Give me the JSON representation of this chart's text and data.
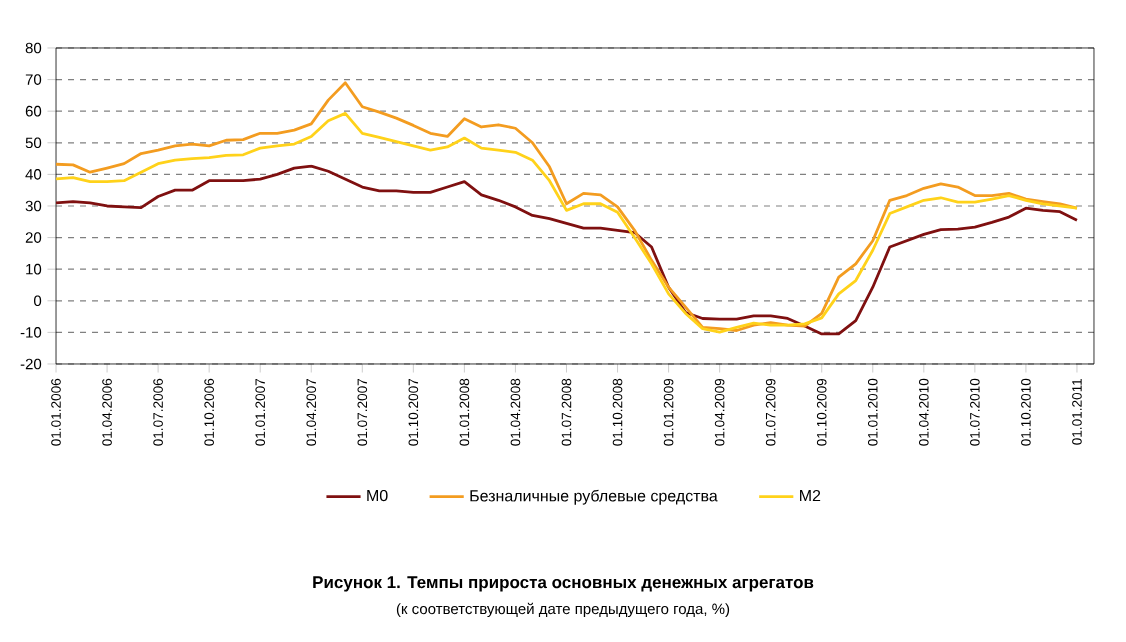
{
  "chart_data": {
    "type": "line",
    "title": "Рисунок 1. Темпы прироста основных денежных агрегатов",
    "subtitle": "(к соответствующей дате предыдущего года, %)",
    "x": [
      "2006-01",
      "2006-02",
      "2006-03",
      "2006-04",
      "2006-05",
      "2006-06",
      "2006-07",
      "2006-08",
      "2006-09",
      "2006-10",
      "2006-11",
      "2006-12",
      "2007-01",
      "2007-02",
      "2007-03",
      "2007-04",
      "2007-05",
      "2007-06",
      "2007-07",
      "2007-08",
      "2007-09",
      "2007-10",
      "2007-11",
      "2007-12",
      "2008-01",
      "2008-02",
      "2008-03",
      "2008-04",
      "2008-05",
      "2008-06",
      "2008-07",
      "2008-08",
      "2008-09",
      "2008-10",
      "2008-11",
      "2008-12",
      "2009-01",
      "2009-02",
      "2009-03",
      "2009-04",
      "2009-05",
      "2009-06",
      "2009-07",
      "2009-08",
      "2009-09",
      "2009-10",
      "2009-11",
      "2009-12",
      "2010-01",
      "2010-02",
      "2010-03",
      "2010-04",
      "2010-05",
      "2010-06",
      "2010-07",
      "2010-08",
      "2010-09",
      "2010-10",
      "2010-11",
      "2010-12",
      "2011-01"
    ],
    "series": [
      {
        "name": "М0",
        "color": "#7f1010",
        "values": [
          31,
          31.4,
          31,
          30,
          29.7,
          29.5,
          33,
          35,
          35,
          38,
          38,
          38,
          38.5,
          40,
          42,
          42.6,
          41,
          38.5,
          36,
          34.8,
          34.8,
          34.3,
          34.3,
          36,
          37.7,
          33.5,
          31.8,
          29.7,
          27,
          26,
          24.5,
          23,
          23,
          22.3,
          21.6,
          17,
          4.3,
          -3.7,
          -5.6,
          -5.8,
          -5.8,
          -4.8,
          -4.8,
          -5.6,
          -8,
          -10.5,
          -10.5,
          -6.3,
          4.3,
          17,
          19,
          21,
          22.5,
          22.7,
          23.3,
          24.8,
          26.5,
          29.3,
          28.6,
          28.2,
          25.5
        ]
      },
      {
        "name": "Безналичные рублевые средства",
        "color": "#f39c20",
        "values": [
          43.2,
          43,
          40.7,
          42,
          43.4,
          46.6,
          47.7,
          49,
          49.6,
          49,
          50.8,
          51,
          53,
          53,
          54,
          56,
          63.5,
          69,
          61.4,
          59.7,
          57.8,
          55.5,
          53,
          52,
          57.6,
          55,
          55.7,
          54.6,
          50,
          42.4,
          30.7,
          34,
          33.5,
          29.7,
          22.3,
          12.8,
          4.3,
          -2,
          -8.4,
          -8.8,
          -9.4,
          -7.7,
          -6.9,
          -7.7,
          -8,
          -4,
          7.5,
          11.7,
          19,
          31.8,
          33.3,
          35.6,
          37,
          36,
          33.3,
          33.3,
          34,
          32.2,
          31.4,
          30.7,
          29.3
        ]
      },
      {
        "name": "М2",
        "color": "#ffd21a",
        "values": [
          38.6,
          39,
          37.7,
          37.7,
          38,
          40.7,
          43.4,
          44.5,
          45,
          45.3,
          46,
          46.2,
          48.3,
          49,
          49.6,
          52,
          57,
          59.3,
          53,
          51.7,
          50.4,
          49,
          47.7,
          48.7,
          51.5,
          48.3,
          47.7,
          47,
          44.5,
          38,
          28.6,
          30.7,
          30.7,
          28,
          20,
          11.7,
          2.2,
          -4,
          -8.8,
          -9.9,
          -8.4,
          -7.1,
          -7.7,
          -7.7,
          -7.3,
          -5.4,
          2.2,
          6.4,
          16,
          27.6,
          29.7,
          31.8,
          32.6,
          31.2,
          31.2,
          32.2,
          33.3,
          31.8,
          30.7,
          30,
          29.3
        ]
      }
    ],
    "xlim": [
      "2006-01",
      "2011-02"
    ],
    "xticks": [
      {
        "value": "2006-01",
        "label": "01.01.2006"
      },
      {
        "value": "2006-04",
        "label": "01.04.2006"
      },
      {
        "value": "2006-07",
        "label": "01.07.2006"
      },
      {
        "value": "2006-10",
        "label": "01.10.2006"
      },
      {
        "value": "2007-01",
        "label": "01.01.2007"
      },
      {
        "value": "2007-04",
        "label": "01.04.2007"
      },
      {
        "value": "2007-07",
        "label": "01.07.2007"
      },
      {
        "value": "2007-10",
        "label": "01.10.2007"
      },
      {
        "value": "2008-01",
        "label": "01.01.2008"
      },
      {
        "value": "2008-04",
        "label": "01.04.2008"
      },
      {
        "value": "2008-07",
        "label": "01.07.2008"
      },
      {
        "value": "2008-10",
        "label": "01.10.2008"
      },
      {
        "value": "2009-01",
        "label": "01.01.2009"
      },
      {
        "value": "2009-04",
        "label": "01.04.2009"
      },
      {
        "value": "2009-07",
        "label": "01.07.2009"
      },
      {
        "value": "2009-10",
        "label": "01.10.2009"
      },
      {
        "value": "2010-01",
        "label": "01.01.2010"
      },
      {
        "value": "2010-04",
        "label": "01.04.2010"
      },
      {
        "value": "2010-07",
        "label": "01.07.2010"
      },
      {
        "value": "2010-10",
        "label": "01.10.2010"
      },
      {
        "value": "2011-01",
        "label": "01.01.2011"
      }
    ],
    "ylim": [
      -20,
      80
    ],
    "yticks": [
      -20,
      -10,
      0,
      10,
      20,
      30,
      40,
      50,
      60,
      70,
      80
    ],
    "grid": "y",
    "legend": "bottom",
    "marker": "none",
    "line_style": "solid"
  }
}
